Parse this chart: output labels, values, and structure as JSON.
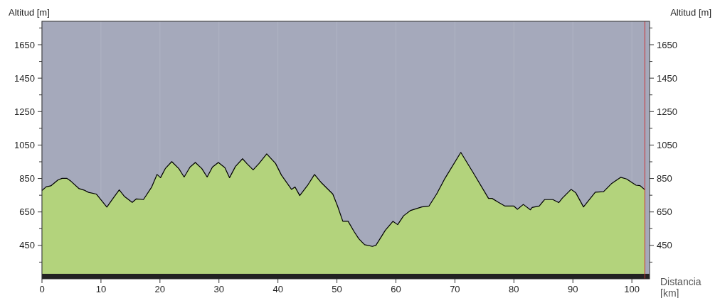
{
  "chart_data": {
    "type": "area",
    "xlabel": "Distancia [km]",
    "ylabel": "Altitud [m]",
    "y2label": "Altitud [m]",
    "xlim": [
      0,
      103
    ],
    "ylim": [
      250,
      1790
    ],
    "y2lim": [
      250,
      1790
    ],
    "xticks": [
      0,
      10,
      20,
      30,
      40,
      50,
      60,
      70,
      80,
      90,
      100
    ],
    "yticks": [
      {
        "value": 350,
        "label": null
      },
      450,
      {
        "value": 550,
        "label": null
      },
      650,
      {
        "value": 750,
        "label": null
      },
      850,
      {
        "value": 950,
        "label": null
      },
      1050,
      {
        "value": 1150,
        "label": null
      },
      1250,
      {
        "value": 1350,
        "label": null
      },
      1450,
      {
        "value": 1550,
        "label": null
      },
      1650,
      {
        "value": 1750,
        "label": null
      }
    ],
    "y2ticks": [
      {
        "value": 350,
        "label": null
      },
      450,
      {
        "value": 550,
        "label": null
      },
      650,
      {
        "value": 750,
        "label": null
      },
      850,
      {
        "value": 950,
        "label": null
      },
      1050,
      {
        "value": 1150,
        "label": null
      },
      1250,
      {
        "value": 1350,
        "label": null
      },
      1450,
      {
        "value": 1550,
        "label": null
      },
      1650,
      {
        "value": 1750,
        "label": null
      }
    ],
    "grid": "x",
    "bands": [
      {
        "axis": "y",
        "from": 250,
        "to": 280,
        "color": "#222222"
      }
    ],
    "ref_lines": [
      {
        "axis": "x",
        "value": 102.2,
        "color": "#cc3333"
      }
    ],
    "series": [
      {
        "color": "#b3d37c",
        "x": [
          0,
          0.7,
          1.5,
          2.7,
          3.4,
          4.2,
          4.9,
          6.3,
          7.1,
          7.9,
          9.2,
          11.0,
          12.0,
          13.1,
          14.0,
          15.3,
          16.0,
          17.2,
          18.6,
          19.5,
          20.1,
          20.9,
          22.0,
          23.2,
          24.1,
          25.1,
          26.0,
          27.1,
          28.0,
          28.9,
          29.9,
          31.0,
          31.8,
          32.8,
          34.0,
          34.8,
          35.8,
          36.8,
          38.1,
          39.6,
          40.6,
          42.3,
          42.9,
          43.7,
          45.1,
          46.2,
          47.3,
          48.3,
          49.3,
          50.1,
          51.0,
          51.9,
          52.9,
          53.7,
          54.7,
          56.0,
          56.6,
          58.2,
          59.5,
          60.3,
          61.3,
          62.5,
          64.4,
          65.6,
          66.9,
          68.3,
          71.0,
          73.2,
          75.7,
          76.3,
          77.3,
          78.5,
          80.0,
          80.6,
          81.6,
          82.8,
          83.1,
          84.3,
          85.2,
          86.6,
          87.6,
          88.2,
          89.7,
          90.5,
          91.8,
          93.8,
          95.2,
          96.6,
          98.1,
          99.1,
          100.7,
          101.4,
          102.2
        ],
        "values": [
          778,
          800,
          806,
          841,
          851,
          851,
          834,
          789,
          781,
          767,
          757,
          679,
          729,
          782,
          742,
          707,
          728,
          724,
          799,
          874,
          855,
          909,
          951,
          909,
          859,
          918,
          946,
          909,
          859,
          918,
          946,
          915,
          855,
          922,
          968,
          937,
          902,
          940,
          997,
          940,
          870,
          785,
          799,
          748,
          813,
          874,
          827,
          792,
          757,
          686,
          594,
          594,
          533,
          490,
          454,
          444,
          450,
          540,
          594,
          574,
          627,
          659,
          680,
          685,
          757,
          850,
          1006,
          879,
          731,
          731,
          709,
          685,
          685,
          666,
          695,
          663,
          677,
          685,
          724,
          724,
          706,
          732,
          785,
          764,
          680,
          768,
          771,
          821,
          857,
          847,
          810,
          807,
          783
        ]
      }
    ]
  }
}
